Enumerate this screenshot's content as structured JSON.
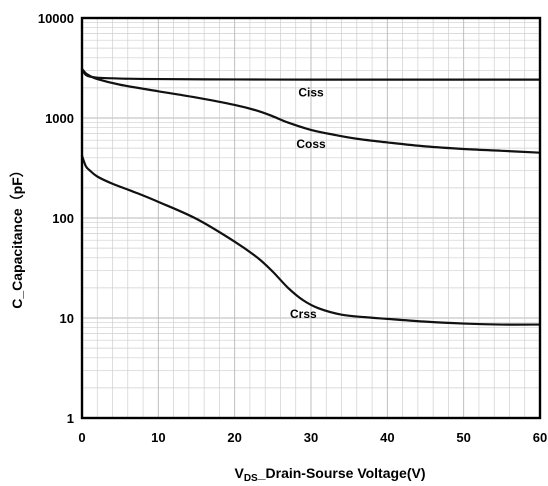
{
  "chart_data": {
    "type": "line",
    "xlabel_main": "V",
    "xlabel_sub": "DS",
    "xlabel_rest": "_Drain-Sourse Voltage(V)",
    "ylabel": "C_Capacitance（pF）",
    "xlim": [
      0,
      60
    ],
    "ylim": [
      1,
      10000
    ],
    "yscale": "log",
    "grid": true,
    "x_ticks": [
      "0",
      "10",
      "20",
      "30",
      "40",
      "50",
      "60"
    ],
    "y_ticks": [
      "1",
      "10",
      "100",
      "1000",
      "10000"
    ],
    "series": [
      {
        "name": "Ciss",
        "x": [
          0,
          0.5,
          1,
          2,
          5,
          10,
          20,
          30,
          40,
          50,
          60
        ],
        "y": [
          3000,
          2700,
          2600,
          2530,
          2480,
          2450,
          2430,
          2420,
          2420,
          2420,
          2420
        ]
      },
      {
        "name": "Coss",
        "x": [
          0,
          0.5,
          1,
          2,
          5,
          10,
          15,
          20,
          23,
          25,
          27,
          30,
          33,
          36,
          40,
          45,
          50,
          55,
          60
        ],
        "y": [
          3100,
          2800,
          2650,
          2450,
          2150,
          1850,
          1600,
          1350,
          1180,
          1040,
          900,
          760,
          680,
          620,
          570,
          520,
          490,
          470,
          450
        ]
      },
      {
        "name": "Crss",
        "x": [
          0,
          0.5,
          1,
          2,
          4,
          7,
          10,
          15,
          20,
          23,
          25,
          27,
          29,
          31,
          34,
          37,
          40,
          45,
          50,
          55,
          60
        ],
        "y": [
          420,
          330,
          300,
          260,
          220,
          180,
          145,
          98,
          58,
          40,
          29,
          20,
          15,
          12.5,
          10.8,
          10.2,
          9.8,
          9.2,
          8.8,
          8.6,
          8.6
        ]
      }
    ]
  }
}
